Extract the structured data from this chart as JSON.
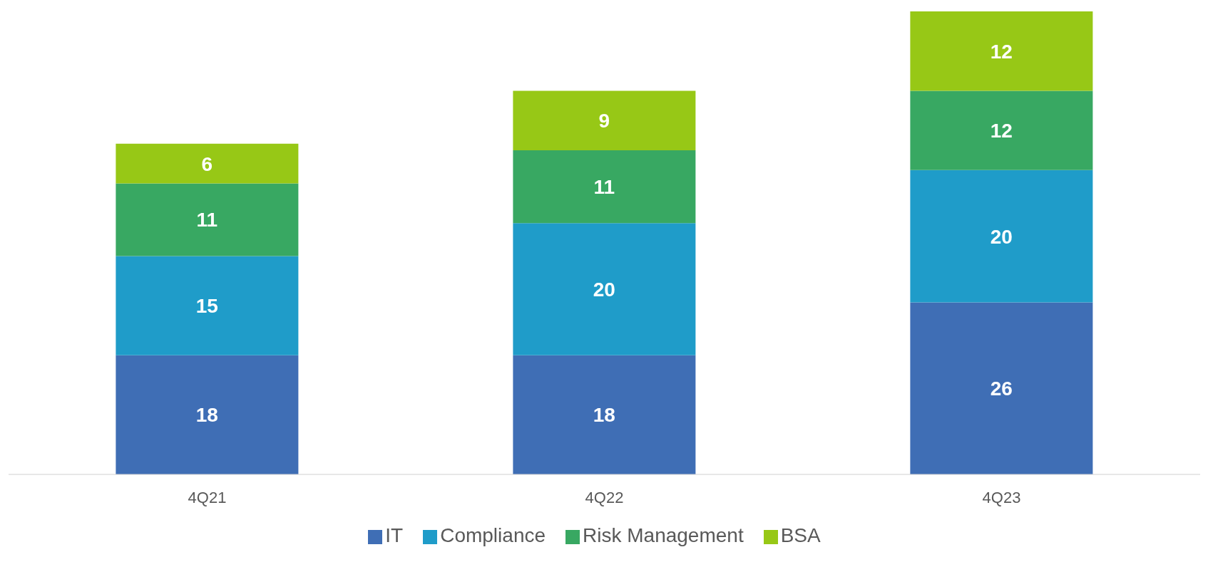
{
  "chart_data": {
    "type": "bar",
    "stacked": true,
    "data_labels": true,
    "legend": "bottom",
    "categories": [
      "4Q21",
      "4Q22",
      "4Q23"
    ],
    "series": [
      {
        "name": "IT",
        "color": "#3f6eb5",
        "values": [
          18,
          18,
          26
        ]
      },
      {
        "name": "Compliance",
        "color": "#1f9cc9",
        "values": [
          15,
          20,
          20
        ]
      },
      {
        "name": "Risk Management",
        "color": "#38a862",
        "values": [
          11,
          11,
          12
        ]
      },
      {
        "name": "BSA",
        "color": "#97c816",
        "values": [
          6,
          9,
          12
        ]
      }
    ]
  }
}
